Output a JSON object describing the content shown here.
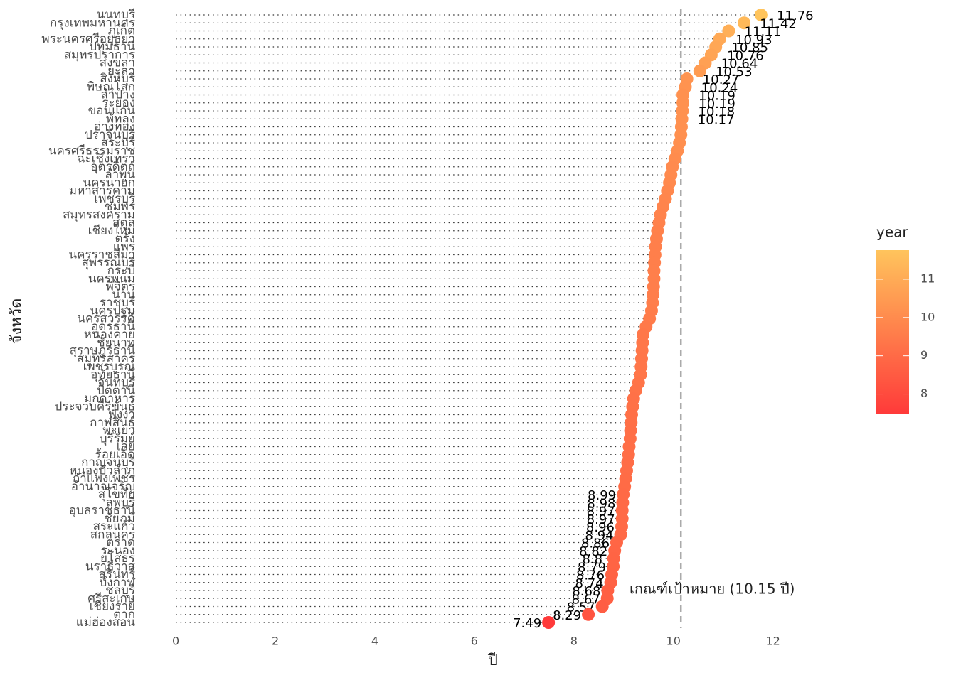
{
  "chart_data": {
    "type": "dot",
    "x_label": "ปี",
    "y_label": "จังหวัด",
    "categories": [
      "นนทบุรี",
      "กรุงเทพมหานคร",
      "ภูเก็ต",
      "พระนครศรีอยุธยา",
      "ปทุมธานี",
      "สมุทรปราการ",
      "สงขลา",
      "ยะลา",
      "สิงห์บุรี",
      "พิษณุโลก",
      "ลำปาง",
      "ระยอง",
      "ขอนแก่น",
      "พัทลุง",
      "อ่างทอง",
      "ปราจีนบุรี",
      "สระบุรี",
      "นครศรีธรรมราช",
      "ฉะเชิงเทรา",
      "อุตรดิตถ์",
      "ลำพูน",
      "นครนายก",
      "มหาสารคาม",
      "เพชรบุรี",
      "ชุมพร",
      "สมุทรสงคราม",
      "สตูล",
      "เชียงใหม่",
      "ตรัง",
      "แพร่",
      "นครราชสีมา",
      "สุพรรณบุรี",
      "กระบี่",
      "นครพนม",
      "พิจิตร",
      "น่าน",
      "ราชบุรี",
      "นครปฐม",
      "นครสวรรค์",
      "อุดรธานี",
      "หนองคาย",
      "ชัยนาท",
      "สุราษฎร์ธานี",
      "สมุทรสาคร",
      "เพชรบูรณ์",
      "อุทัยธานี",
      "จันทบุรี",
      "ปัตตานี",
      "มุกดาหาร",
      "ประจวบคีรีขันธ์",
      "พังงา",
      "กาฬสินธุ์",
      "พะเยา",
      "บุรีรัมย์",
      "เลย",
      "ร้อยเอ็ด",
      "กาญจนบุรี",
      "หนองบัวลำภู",
      "กำแพงเพชร",
      "อำนาจเจริญ",
      "สุโขทัย",
      "ลพบุรี",
      "อุบลราชธานี",
      "ชัยภูมิ",
      "สระแก้ว",
      "สกลนคร",
      "ตราด",
      "ระนอง",
      "ยโสธร",
      "นราธิวาส",
      "สุรินทร์",
      "บึงกาฬ",
      "ชลบุรี",
      "ศรีสะเกษ",
      "เชียงราย",
      "ตาก",
      "แม่ฮ่องสอน"
    ],
    "values": [
      11.76,
      11.42,
      11.11,
      10.93,
      10.85,
      10.76,
      10.64,
      10.53,
      10.27,
      10.24,
      10.19,
      10.19,
      10.18,
      10.17,
      10.16,
      10.15,
      10.12,
      10.08,
      10.03,
      9.98,
      9.95,
      9.92,
      9.88,
      9.84,
      9.79,
      9.74,
      9.71,
      9.68,
      9.66,
      9.64,
      9.63,
      9.62,
      9.61,
      9.61,
      9.6,
      9.59,
      9.58,
      9.56,
      9.52,
      9.45,
      9.39,
      9.38,
      9.37,
      9.36,
      9.35,
      9.34,
      9.3,
      9.24,
      9.2,
      9.18,
      9.16,
      9.15,
      9.14,
      9.13,
      9.11,
      9.1,
      9.08,
      9.06,
      9.04,
      9.02,
      8.99,
      8.98,
      8.97,
      8.97,
      8.96,
      8.94,
      8.86,
      8.82,
      8.8,
      8.79,
      8.76,
      8.74,
      8.68,
      8.67,
      8.57,
      8.29,
      7.49
    ],
    "value_labels": [
      "11.76",
      "11.42",
      "11.11",
      "10.93",
      "10.85",
      "10.76",
      "10.64",
      "10.53",
      "10.27",
      "10.24",
      "10.19",
      "10.19",
      "10.18",
      "10.17",
      null,
      null,
      null,
      null,
      null,
      null,
      null,
      null,
      null,
      null,
      null,
      null,
      null,
      null,
      null,
      null,
      null,
      null,
      null,
      null,
      null,
      null,
      null,
      null,
      null,
      null,
      null,
      null,
      null,
      null,
      null,
      null,
      null,
      null,
      null,
      null,
      null,
      null,
      null,
      null,
      null,
      null,
      null,
      null,
      null,
      null,
      "8.99",
      "8.98",
      "8.97",
      "8.97",
      "8.96",
      "8.94",
      "8.86",
      "8.82",
      "8.8",
      "8.79",
      "8.76",
      "8.74",
      "8.68",
      "8.67",
      "8.57",
      "8.29",
      "7.49"
    ],
    "xlim": [
      -0.588,
      12.348
    ],
    "xticks": [
      0,
      2,
      4,
      6,
      8,
      10,
      12
    ],
    "reference_line": 10.15,
    "annotation": "เกณฑ์เป้าหมาย (10.15 ปี)",
    "colors": [
      "#ff3a3a",
      "#ffc45c"
    ],
    "legend_title": "year",
    "color_ticks": [
      8,
      9,
      10,
      11
    ]
  }
}
